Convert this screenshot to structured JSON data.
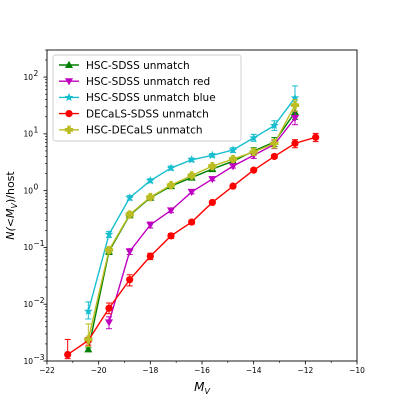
{
  "chart_data": {
    "type": "line",
    "xlabel": "$M_V$",
    "xlabel_parts": {
      "main": "M",
      "sub": "V"
    },
    "ylabel": "N(<M_V)/host",
    "ylabel_parts": {
      "pre": "N(<M",
      "sub": "V",
      "post": ")/host"
    },
    "xlim": [
      -22,
      -10
    ],
    "ylim": [
      0.001,
      300
    ],
    "yscale": "log",
    "xticks": [
      -22,
      -20,
      -18,
      -16,
      -14,
      -12,
      -10
    ],
    "xtick_labels": [
      "−22",
      "−20",
      "−18",
      "−16",
      "−14",
      "−12",
      "−10"
    ],
    "yticks": [
      {
        "value": 0.001,
        "base": "10",
        "exp": "−3"
      },
      {
        "value": 0.01,
        "base": "10",
        "exp": "−2"
      },
      {
        "value": 0.1,
        "base": "10",
        "exp": "−1"
      },
      {
        "value": 1,
        "base": "10",
        "exp": "0"
      },
      {
        "value": 10,
        "base": "10",
        "exp": "1"
      },
      {
        "value": 100,
        "base": "10",
        "exp": "2"
      }
    ],
    "legend_position": "upper-left",
    "grid": false,
    "series": [
      {
        "name": "HSC-SDSS unmatch",
        "color": "#008000",
        "marker": "triangle-up",
        "x": [
          -20.4,
          -19.6,
          -18.8,
          -18.0,
          -17.2,
          -16.4,
          -15.6,
          -14.8,
          -14.0,
          -13.2,
          -12.4
        ],
        "y": [
          0.0016,
          0.085,
          0.37,
          0.75,
          1.2,
          1.7,
          2.4,
          3.3,
          5.0,
          7.2,
          24.0
        ],
        "yerr_low": [
          0.0015,
          0.075,
          0.33,
          0.69,
          1.1,
          1.6,
          2.2,
          3.0,
          4.3,
          6.0,
          18.0
        ],
        "yerr_high": [
          0.0017,
          0.095,
          0.41,
          0.81,
          1.3,
          1.8,
          2.6,
          3.6,
          5.7,
          8.6,
          31.0
        ]
      },
      {
        "name": "HSC-SDSS unmatch red",
        "color": "#bf00bf",
        "marker": "triangle-down",
        "x": [
          -19.6,
          -18.8,
          -18.0,
          -17.2,
          -16.4,
          -15.6,
          -14.8,
          -14.0,
          -13.2,
          -12.4
        ],
        "y": [
          0.0048,
          0.085,
          0.25,
          0.45,
          0.95,
          1.6,
          2.7,
          4.2,
          6.5,
          19.0
        ],
        "yerr_low": [
          0.0037,
          0.075,
          0.22,
          0.41,
          0.88,
          1.5,
          2.5,
          3.7,
          5.5,
          14.5
        ],
        "yerr_high": [
          0.006,
          0.095,
          0.28,
          0.49,
          1.03,
          1.75,
          2.95,
          4.8,
          7.8,
          25.0
        ]
      },
      {
        "name": "HSC-SDSS unmatch blue",
        "color": "#17becf",
        "marker": "star",
        "x": [
          -20.4,
          -19.6,
          -18.8,
          -18.0,
          -17.2,
          -16.4,
          -15.6,
          -14.8,
          -14.0,
          -13.2,
          -12.4
        ],
        "y": [
          0.0075,
          0.17,
          0.75,
          1.5,
          2.5,
          3.5,
          4.2,
          5.2,
          8.5,
          14.0,
          43.0
        ],
        "yerr_low": [
          0.0055,
          0.15,
          0.68,
          1.38,
          2.3,
          3.25,
          3.9,
          4.7,
          7.4,
          11.5,
          31.0
        ],
        "yerr_high": [
          0.011,
          0.19,
          0.82,
          1.62,
          2.7,
          3.75,
          4.5,
          5.7,
          9.8,
          17.0,
          70.0
        ]
      },
      {
        "name": "DECaLS-SDSS unmatch",
        "color": "#ff0000",
        "marker": "circle",
        "x": [
          -21.2,
          -20.4,
          -19.6,
          -18.8,
          -18.0,
          -17.2,
          -16.4,
          -15.6,
          -14.8,
          -14.0,
          -13.2,
          -12.4,
          -11.6
        ],
        "y": [
          0.0013,
          0.0023,
          0.0085,
          0.027,
          0.07,
          0.16,
          0.28,
          0.62,
          1.2,
          2.3,
          4.0,
          6.8,
          8.7
        ],
        "yerr_low": [
          0.0011,
          0.0019,
          0.0068,
          0.021,
          0.061,
          0.144,
          0.257,
          0.58,
          1.12,
          2.15,
          3.7,
          5.7,
          7.3
        ],
        "yerr_high": [
          0.0024,
          0.0026,
          0.0105,
          0.033,
          0.079,
          0.176,
          0.303,
          0.66,
          1.28,
          2.45,
          4.3,
          7.9,
          10.2
        ]
      },
      {
        "name": "HSC-DECaLS unmatch",
        "color": "#bcbd22",
        "marker": "plus-filled",
        "x": [
          -20.4,
          -19.6,
          -18.8,
          -18.0,
          -17.2,
          -16.4,
          -15.6,
          -14.8,
          -14.0,
          -13.2,
          -12.4
        ],
        "y": [
          0.0024,
          0.09,
          0.38,
          0.77,
          1.25,
          1.85,
          2.7,
          3.6,
          4.8,
          6.8,
          32.0
        ],
        "yerr_low": [
          0.0018,
          0.08,
          0.34,
          0.71,
          1.15,
          1.7,
          2.5,
          3.3,
          4.2,
          5.6,
          25.0
        ],
        "yerr_high": [
          0.0045,
          0.1,
          0.42,
          0.83,
          1.35,
          2.0,
          2.9,
          3.9,
          5.4,
          8.0,
          40.0
        ]
      }
    ]
  }
}
